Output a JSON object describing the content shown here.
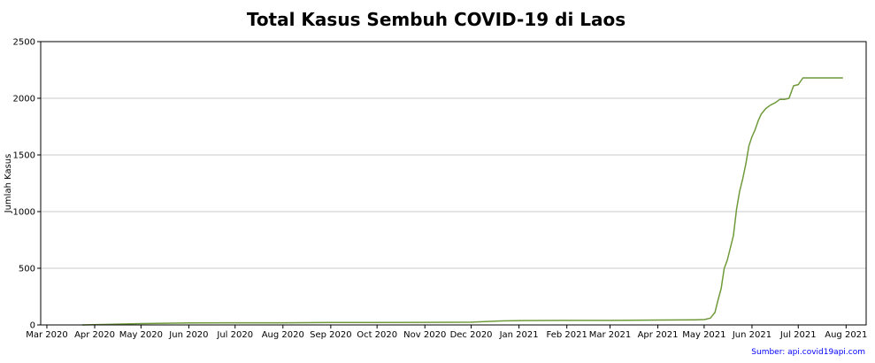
{
  "chart_data": {
    "type": "line",
    "title": "Total Kasus Sembuh COVID-19 di Laos",
    "xlabel": "",
    "ylabel": "Jumlah Kasus",
    "ylim": [
      0,
      2500
    ],
    "xlim": [
      "2020-02-26",
      "2021-08-14"
    ],
    "yticks": [
      0,
      500,
      1000,
      1500,
      2000,
      2500
    ],
    "xticks": [
      {
        "date": "2020-03-01",
        "label": "Mar 2020"
      },
      {
        "date": "2020-04-01",
        "label": "Apr 2020"
      },
      {
        "date": "2020-05-01",
        "label": "May 2020"
      },
      {
        "date": "2020-06-01",
        "label": "Jun 2020"
      },
      {
        "date": "2020-07-01",
        "label": "Jul 2020"
      },
      {
        "date": "2020-08-01",
        "label": "Aug 2020"
      },
      {
        "date": "2020-09-01",
        "label": "Sep 2020"
      },
      {
        "date": "2020-10-01",
        "label": "Oct 2020"
      },
      {
        "date": "2020-11-01",
        "label": "Nov 2020"
      },
      {
        "date": "2020-12-01",
        "label": "Dec 2020"
      },
      {
        "date": "2021-01-01",
        "label": "Jan 2021"
      },
      {
        "date": "2021-02-01",
        "label": "Feb 2021"
      },
      {
        "date": "2021-03-01",
        "label": "Mar 2021"
      },
      {
        "date": "2021-04-01",
        "label": "Apr 2021"
      },
      {
        "date": "2021-05-01",
        "label": "May 2021"
      },
      {
        "date": "2021-06-01",
        "label": "Jun 2021"
      },
      {
        "date": "2021-07-01",
        "label": "Jul 2021"
      },
      {
        "date": "2021-08-01",
        "label": "Aug 2021"
      }
    ],
    "grid": "horizontal",
    "color": "#6f9a3a",
    "x": [
      "2020-03-24",
      "2020-04-10",
      "2020-05-01",
      "2020-06-01",
      "2020-07-01",
      "2020-08-01",
      "2020-09-01",
      "2020-10-01",
      "2020-11-01",
      "2020-12-01",
      "2020-12-20",
      "2021-01-01",
      "2021-02-01",
      "2021-03-01",
      "2021-04-01",
      "2021-04-25",
      "2021-05-01",
      "2021-05-02",
      "2021-05-05",
      "2021-05-08",
      "2021-05-10",
      "2021-05-12",
      "2021-05-14",
      "2021-05-16",
      "2021-05-18",
      "2021-05-20",
      "2021-05-22",
      "2021-05-24",
      "2021-05-26",
      "2021-05-28",
      "2021-05-30",
      "2021-06-01",
      "2021-06-03",
      "2021-06-05",
      "2021-06-07",
      "2021-06-10",
      "2021-06-13",
      "2021-06-16",
      "2021-06-19",
      "2021-06-22",
      "2021-06-25",
      "2021-06-28",
      "2021-07-01",
      "2021-07-04",
      "2021-07-07",
      "2021-07-10",
      "2021-07-13",
      "2021-07-20",
      "2021-07-30"
    ],
    "values": [
      0,
      5,
      12,
      17,
      19,
      19,
      21,
      22,
      23,
      24,
      35,
      38,
      40,
      40,
      43,
      45,
      48,
      50,
      60,
      110,
      220,
      320,
      500,
      570,
      680,
      790,
      1020,
      1180,
      1290,
      1420,
      1580,
      1660,
      1720,
      1800,
      1860,
      1910,
      1940,
      1960,
      1990,
      1990,
      2000,
      2110,
      2120,
      2180,
      2180,
      2180,
      2180,
      2180,
      2180
    ]
  },
  "source_text": "Sumber: api.covid19api.com"
}
